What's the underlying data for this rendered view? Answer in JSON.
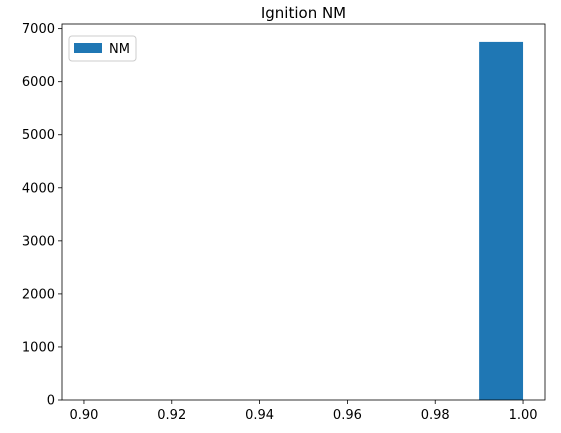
{
  "chart_data": {
    "type": "bar",
    "title": "Ignition NM",
    "xlabel": "",
    "ylabel": "",
    "xlim": [
      0.895,
      1.005
    ],
    "ylim": [
      0,
      7087.5
    ],
    "xticks": [
      0.9,
      0.92,
      0.94,
      0.96,
      0.98,
      1.0
    ],
    "xtick_labels": [
      "0.90",
      "0.92",
      "0.94",
      "0.96",
      "0.98",
      "1.00"
    ],
    "yticks": [
      0,
      1000,
      2000,
      3000,
      4000,
      5000,
      6000,
      7000
    ],
    "ytick_labels": [
      "0",
      "1000",
      "2000",
      "3000",
      "4000",
      "5000",
      "6000",
      "7000"
    ],
    "grid": false,
    "legend_position": "top-left",
    "series": [
      {
        "name": "NM",
        "color": "#1f77b4",
        "bins": [
          {
            "x_start": 0.99,
            "x_end": 1.0,
            "value": 6750
          }
        ]
      }
    ]
  }
}
